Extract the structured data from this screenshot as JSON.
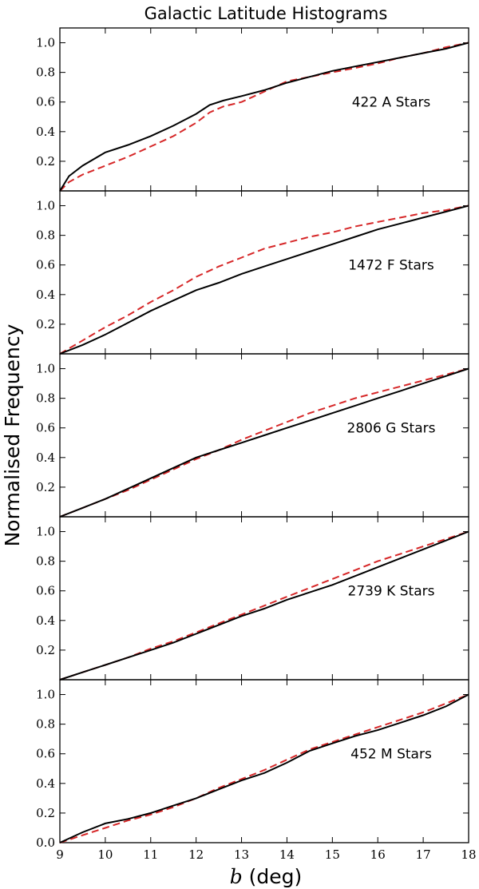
{
  "chart_data": {
    "type": "line",
    "title": "Galactic Latitude Histograms",
    "ylabel": "Normalised Frequency",
    "xlabel_var": "b",
    "xlabel_unit": " (deg)",
    "xlim": [
      9,
      18
    ],
    "ylim": [
      0,
      1.1
    ],
    "x_ticks": [
      "9",
      "10",
      "11",
      "12",
      "13",
      "14",
      "15",
      "16",
      "17",
      "18"
    ],
    "y_ticks": [
      "0.2",
      "0.4",
      "0.6",
      "0.8",
      "1.0"
    ],
    "bottom_y_ticks": [
      "0.0",
      "0.2",
      "0.4",
      "0.6",
      "0.8",
      "1.0"
    ],
    "colors": {
      "observed": "#000000",
      "model": "#d62728"
    },
    "panels": [
      {
        "label": "422 A Stars",
        "series": [
          {
            "style": "solid",
            "color": "#000000",
            "x": [
              9.0,
              9.2,
              9.5,
              10.0,
              10.5,
              11.0,
              11.5,
              12.0,
              12.3,
              12.6,
              13.0,
              13.5,
              14.0,
              14.5,
              15.0,
              15.5,
              16.0,
              16.5,
              17.0,
              17.5,
              18.0
            ],
            "y": [
              0.0,
              0.1,
              0.17,
              0.26,
              0.31,
              0.37,
              0.44,
              0.52,
              0.58,
              0.61,
              0.64,
              0.68,
              0.73,
              0.77,
              0.81,
              0.84,
              0.87,
              0.9,
              0.93,
              0.96,
              1.0
            ]
          },
          {
            "style": "dashed",
            "color": "#d62728",
            "x": [
              9.0,
              9.2,
              9.5,
              10.0,
              10.5,
              11.0,
              11.5,
              12.0,
              12.3,
              12.6,
              13.0,
              13.5,
              14.0,
              14.5,
              15.0,
              15.5,
              16.0,
              16.5,
              17.0,
              17.5,
              18.0
            ],
            "y": [
              0.0,
              0.06,
              0.11,
              0.17,
              0.23,
              0.3,
              0.37,
              0.46,
              0.53,
              0.57,
              0.6,
              0.67,
              0.74,
              0.77,
              0.8,
              0.83,
              0.86,
              0.9,
              0.93,
              0.97,
              1.0
            ]
          }
        ]
      },
      {
        "label": "1472 F Stars",
        "series": [
          {
            "style": "solid",
            "color": "#000000",
            "x": [
              9.0,
              9.5,
              10.0,
              10.5,
              11.0,
              11.5,
              12.0,
              12.5,
              13.0,
              13.5,
              14.0,
              14.5,
              15.0,
              15.5,
              16.0,
              16.5,
              17.0,
              17.5,
              18.0
            ],
            "y": [
              0.0,
              0.06,
              0.13,
              0.21,
              0.29,
              0.36,
              0.43,
              0.48,
              0.54,
              0.59,
              0.64,
              0.69,
              0.74,
              0.79,
              0.84,
              0.88,
              0.92,
              0.96,
              1.0
            ]
          },
          {
            "style": "dashed",
            "color": "#d62728",
            "x": [
              9.0,
              9.5,
              10.0,
              10.5,
              11.0,
              11.5,
              12.0,
              12.5,
              13.0,
              13.5,
              14.0,
              14.5,
              15.0,
              15.5,
              16.0,
              16.5,
              17.0,
              17.5,
              18.0
            ],
            "y": [
              0.0,
              0.09,
              0.18,
              0.26,
              0.35,
              0.43,
              0.52,
              0.59,
              0.65,
              0.71,
              0.75,
              0.79,
              0.82,
              0.86,
              0.89,
              0.92,
              0.95,
              0.97,
              1.0
            ]
          }
        ]
      },
      {
        "label": "2806 G Stars",
        "series": [
          {
            "style": "solid",
            "color": "#000000",
            "x": [
              9.0,
              9.5,
              10.0,
              10.5,
              11.0,
              11.5,
              12.0,
              12.5,
              13.0,
              13.5,
              14.0,
              14.5,
              15.0,
              15.5,
              16.0,
              16.5,
              17.0,
              17.5,
              18.0
            ],
            "y": [
              0.0,
              0.06,
              0.12,
              0.19,
              0.26,
              0.33,
              0.4,
              0.45,
              0.5,
              0.55,
              0.6,
              0.65,
              0.7,
              0.75,
              0.8,
              0.85,
              0.9,
              0.95,
              1.0
            ]
          },
          {
            "style": "dashed",
            "color": "#d62728",
            "x": [
              9.0,
              9.5,
              10.0,
              10.5,
              11.0,
              11.5,
              12.0,
              12.5,
              13.0,
              13.5,
              14.0,
              14.5,
              15.0,
              15.5,
              16.0,
              16.5,
              17.0,
              17.5,
              18.0
            ],
            "y": [
              0.0,
              0.06,
              0.12,
              0.18,
              0.25,
              0.32,
              0.39,
              0.45,
              0.52,
              0.58,
              0.64,
              0.7,
              0.75,
              0.8,
              0.84,
              0.88,
              0.92,
              0.96,
              1.0
            ]
          }
        ]
      },
      {
        "label": "2739 K Stars",
        "series": [
          {
            "style": "solid",
            "color": "#000000",
            "x": [
              9.0,
              9.5,
              10.0,
              10.5,
              11.0,
              11.5,
              12.0,
              12.5,
              13.0,
              13.5,
              14.0,
              14.5,
              15.0,
              15.5,
              16.0,
              16.5,
              17.0,
              17.5,
              18.0
            ],
            "y": [
              0.0,
              0.05,
              0.1,
              0.15,
              0.2,
              0.25,
              0.31,
              0.37,
              0.43,
              0.48,
              0.54,
              0.59,
              0.64,
              0.7,
              0.76,
              0.82,
              0.88,
              0.94,
              1.0
            ]
          },
          {
            "style": "dashed",
            "color": "#d62728",
            "x": [
              9.0,
              9.5,
              10.0,
              10.5,
              11.0,
              11.5,
              12.0,
              12.5,
              13.0,
              13.5,
              14.0,
              14.5,
              15.0,
              15.5,
              16.0,
              16.5,
              17.0,
              17.5,
              18.0
            ],
            "y": [
              0.0,
              0.05,
              0.1,
              0.15,
              0.21,
              0.26,
              0.32,
              0.38,
              0.44,
              0.5,
              0.56,
              0.62,
              0.68,
              0.74,
              0.8,
              0.85,
              0.9,
              0.95,
              1.0
            ]
          }
        ]
      },
      {
        "label": "452 M Stars",
        "series": [
          {
            "style": "solid",
            "color": "#000000",
            "x": [
              9.0,
              9.5,
              10.0,
              10.5,
              11.0,
              11.5,
              12.0,
              12.5,
              13.0,
              13.5,
              14.0,
              14.5,
              15.0,
              15.5,
              16.0,
              16.5,
              17.0,
              17.5,
              18.0
            ],
            "y": [
              0.0,
              0.07,
              0.13,
              0.16,
              0.2,
              0.25,
              0.3,
              0.36,
              0.42,
              0.47,
              0.54,
              0.62,
              0.67,
              0.72,
              0.76,
              0.81,
              0.86,
              0.92,
              1.0
            ]
          },
          {
            "style": "dashed",
            "color": "#d62728",
            "x": [
              9.0,
              9.5,
              10.0,
              10.5,
              11.0,
              11.5,
              12.0,
              12.5,
              13.0,
              13.5,
              14.0,
              14.5,
              15.0,
              15.5,
              16.0,
              16.5,
              17.0,
              17.5,
              18.0
            ],
            "y": [
              0.0,
              0.05,
              0.1,
              0.15,
              0.19,
              0.24,
              0.3,
              0.37,
              0.43,
              0.49,
              0.56,
              0.63,
              0.68,
              0.73,
              0.78,
              0.83,
              0.88,
              0.94,
              1.0
            ]
          }
        ]
      }
    ]
  }
}
